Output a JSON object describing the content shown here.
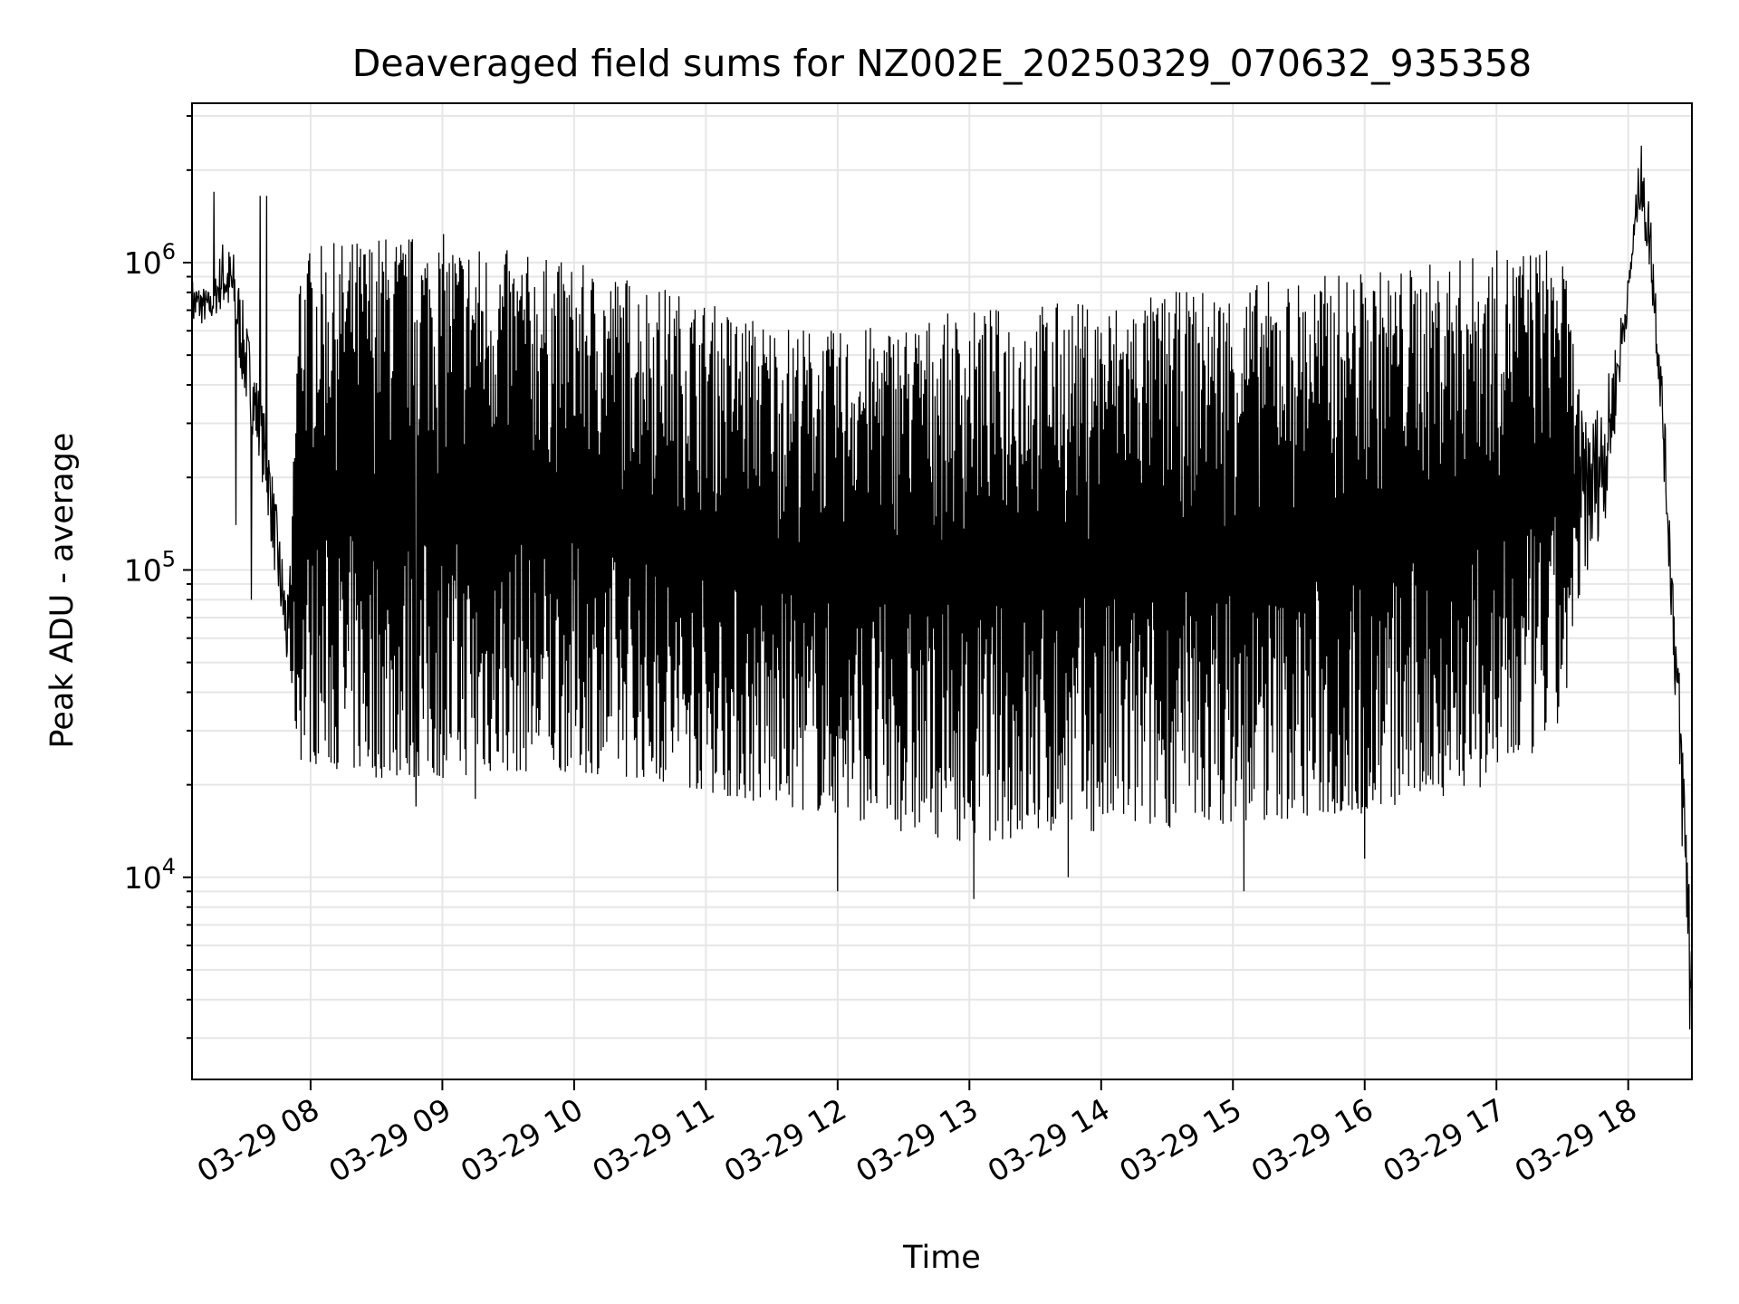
{
  "chart_data": {
    "type": "line",
    "title": "Deaveraged field sums for NZ002E_20250329_070632_935358",
    "xlabel": "Time",
    "ylabel": "Peak ADU - average",
    "yscale": "log",
    "ylim": [
      2200,
      3300000
    ],
    "xlim": [
      "2025-03-29 07:06",
      "2025-03-29 18:29"
    ],
    "grid": true,
    "line_color": "#000000",
    "grid_color": "#e6e6e6",
    "x_ticks": [
      "03-29 08",
      "03-29 09",
      "03-29 10",
      "03-29 11",
      "03-29 12",
      "03-29 13",
      "03-29 14",
      "03-29 15",
      "03-29 16",
      "03-29 17",
      "03-29 18"
    ],
    "y_ticks": [
      {
        "value": 10000,
        "base": "10",
        "exp": "4"
      },
      {
        "value": 100000,
        "base": "10",
        "exp": "5"
      },
      {
        "value": 1000000,
        "base": "10",
        "exp": "6"
      }
    ],
    "envelope": {
      "note_units": "time as HH:MM on 2025-03-29; high/low in ADU",
      "points": [
        {
          "t": "07:06",
          "high": 900000,
          "low": 600000
        },
        {
          "t": "07:15",
          "high": 800000,
          "low": 650000
        },
        {
          "t": "07:20",
          "high": 1200000,
          "low": 700000
        },
        {
          "t": "07:25",
          "high": 1100000,
          "low": 600000
        },
        {
          "t": "07:30",
          "high": 700000,
          "low": 350000
        },
        {
          "t": "07:35",
          "high": 450000,
          "low": 250000
        },
        {
          "t": "07:40",
          "high": 300000,
          "low": 160000
        },
        {
          "t": "07:45",
          "high": 150000,
          "low": 80000
        },
        {
          "t": "07:50",
          "high": 80000,
          "low": 40000
        },
        {
          "t": "07:55",
          "high": 1100000,
          "low": 24000
        },
        {
          "t": "08:30",
          "high": 1250000,
          "low": 21000
        },
        {
          "t": "09:00",
          "high": 1250000,
          "low": 21000
        },
        {
          "t": "09:30",
          "high": 1100000,
          "low": 22000
        },
        {
          "t": "10:00",
          "high": 1000000,
          "low": 22000
        },
        {
          "t": "10:30",
          "high": 900000,
          "low": 21000
        },
        {
          "t": "11:00",
          "high": 750000,
          "low": 19000
        },
        {
          "t": "11:30",
          "high": 650000,
          "low": 17000
        },
        {
          "t": "12:00",
          "high": 600000,
          "low": 16000
        },
        {
          "t": "12:30",
          "high": 650000,
          "low": 14000
        },
        {
          "t": "13:00",
          "high": 700000,
          "low": 13000
        },
        {
          "t": "13:30",
          "high": 750000,
          "low": 13500
        },
        {
          "t": "14:00",
          "high": 750000,
          "low": 14000
        },
        {
          "t": "14:30",
          "high": 800000,
          "low": 14500
        },
        {
          "t": "15:00",
          "high": 850000,
          "low": 15000
        },
        {
          "t": "15:30",
          "high": 900000,
          "low": 15500
        },
        {
          "t": "16:00",
          "high": 950000,
          "low": 16000
        },
        {
          "t": "16:30",
          "high": 1000000,
          "low": 18000
        },
        {
          "t": "17:00",
          "high": 1100000,
          "low": 20000
        },
        {
          "t": "17:20",
          "high": 1150000,
          "low": 26000
        },
        {
          "t": "17:30",
          "high": 1100000,
          "low": 32000
        },
        {
          "t": "17:40",
          "high": 300000,
          "low": 90000
        },
        {
          "t": "17:50",
          "high": 400000,
          "low": 150000
        },
        {
          "t": "18:00",
          "high": 900000,
          "low": 700000
        },
        {
          "t": "18:05",
          "high": 2200000,
          "low": 1500000
        },
        {
          "t": "18:10",
          "high": 1600000,
          "low": 900000
        },
        {
          "t": "18:15",
          "high": 500000,
          "low": 300000
        },
        {
          "t": "18:20",
          "high": 120000,
          "low": 60000
        },
        {
          "t": "18:25",
          "high": 30000,
          "low": 10000
        },
        {
          "t": "18:29",
          "high": 9000,
          "low": 3000
        }
      ]
    },
    "spikes": [
      {
        "t": "07:16",
        "value": 1700000
      },
      {
        "t": "07:26",
        "value": 140000
      },
      {
        "t": "07:33",
        "value": 80000
      },
      {
        "t": "07:37",
        "value": 1650000
      },
      {
        "t": "07:40",
        "value": 1650000
      },
      {
        "t": "08:48",
        "value": 17000
      },
      {
        "t": "09:15",
        "value": 18000
      },
      {
        "t": "12:00",
        "value": 9000
      },
      {
        "t": "13:02",
        "value": 8500
      },
      {
        "t": "13:45",
        "value": 10000
      },
      {
        "t": "15:05",
        "value": 9000
      },
      {
        "t": "16:00",
        "value": 11500
      },
      {
        "t": "18:06",
        "value": 2400000
      },
      {
        "t": "18:28",
        "value": 3200
      }
    ]
  }
}
